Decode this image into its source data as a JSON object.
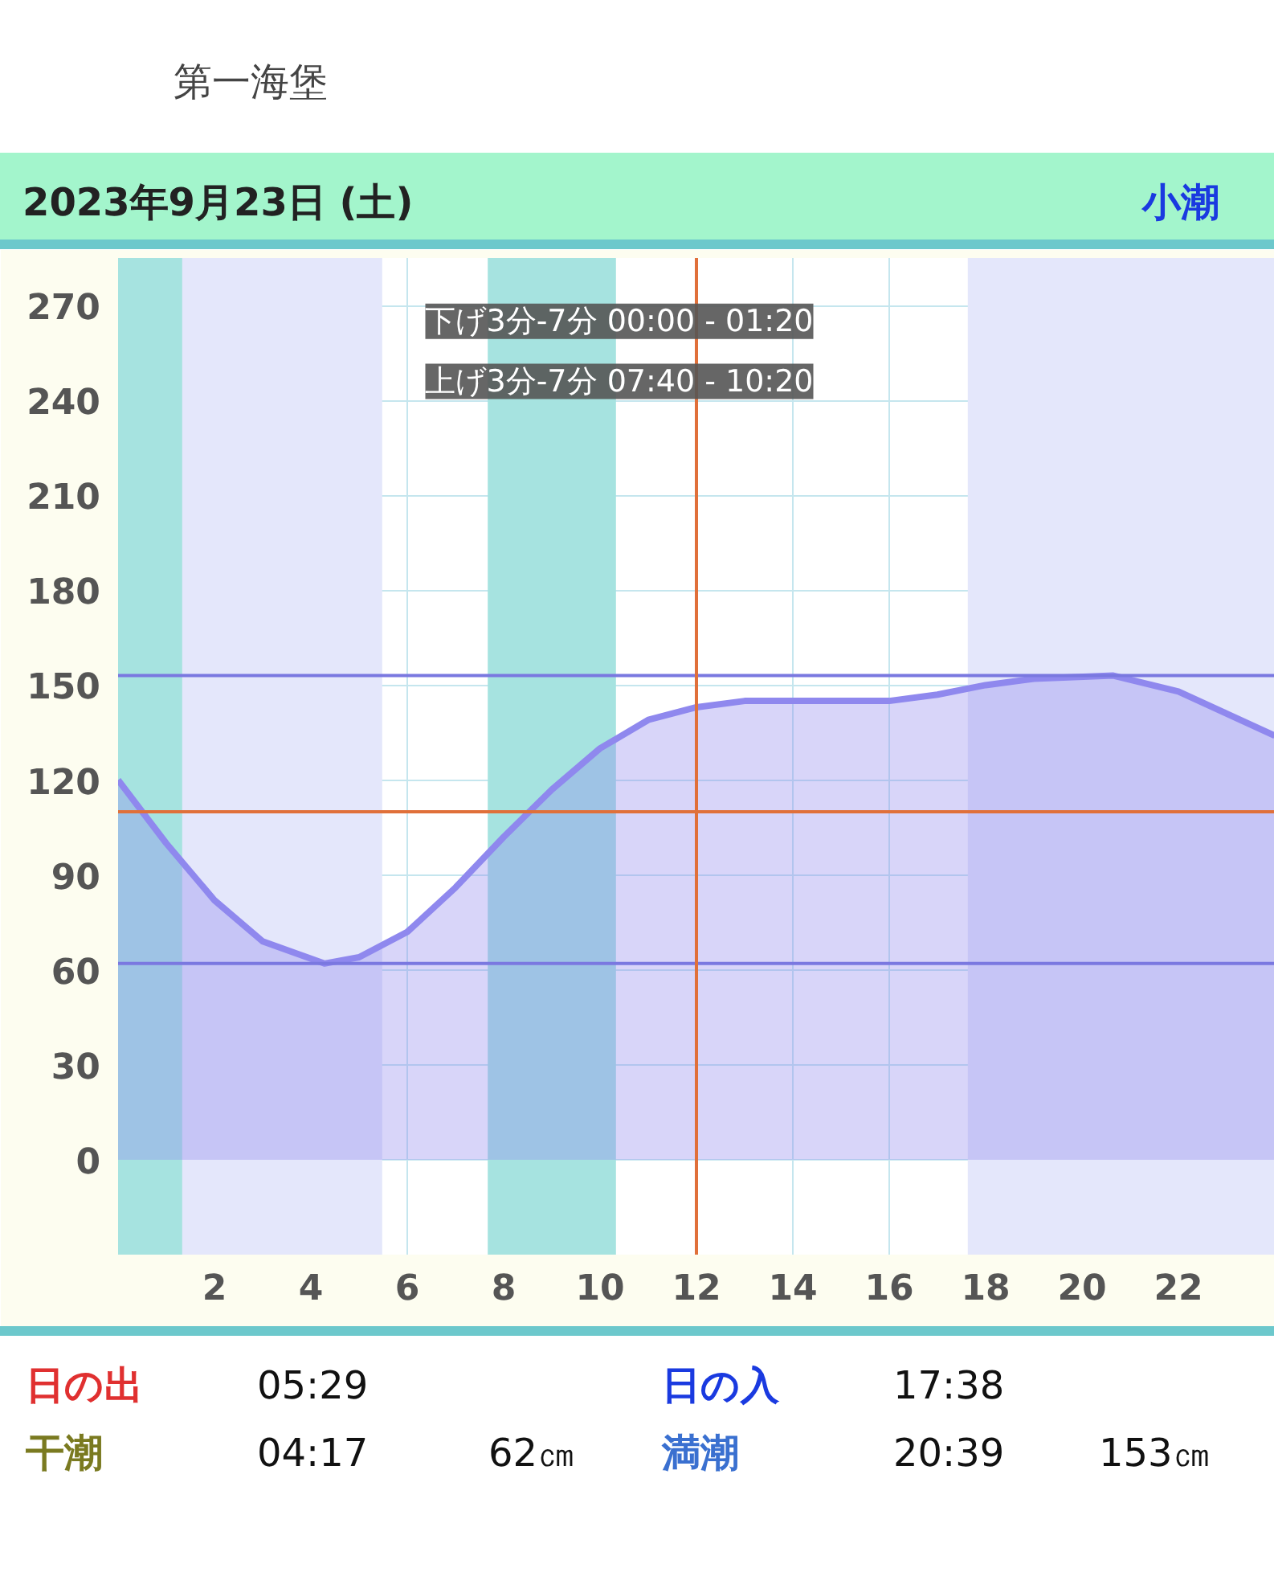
{
  "chart_data": {
    "type": "area",
    "title": "第一海堡",
    "subtitle": "2023年9月23日 (土)",
    "x": [
      0,
      1,
      2,
      3,
      4.28,
      5,
      6,
      7,
      8,
      9,
      10,
      11,
      12,
      13,
      14,
      16,
      17,
      18,
      19,
      20.65,
      22,
      23,
      24
    ],
    "series": [
      {
        "color": "#8f88ee",
        "values": [
          120,
          100,
          82,
          69,
          62,
          64,
          72,
          86,
          102,
          117,
          130,
          139,
          143,
          145,
          145,
          145,
          147,
          150,
          152,
          153,
          148,
          141,
          134
        ]
      }
    ],
    "xlim": [
      0,
      24
    ],
    "ylim": [
      -30,
      285
    ],
    "xticks": [
      2,
      4,
      6,
      8,
      10,
      12,
      14,
      16,
      18,
      20,
      22
    ],
    "yticks": [
      0,
      30,
      60,
      90,
      120,
      150,
      180,
      210,
      240,
      270
    ],
    "grid": true,
    "marker": "none",
    "line_style": "solid",
    "bands": [
      {
        "axis": "x",
        "from": 0,
        "to": 5.48,
        "color": "#e4e7fb"
      },
      {
        "axis": "x",
        "from": 17.63,
        "to": 24,
        "color": "#e4e7fb"
      },
      {
        "axis": "x",
        "from": 0,
        "to": 1.33,
        "color": "#a6e3e0"
      },
      {
        "axis": "x",
        "from": 7.67,
        "to": 10.33,
        "color": "#a6e3e0"
      }
    ],
    "ref_lines": [
      {
        "axis": "y",
        "value": 153,
        "color": "#7a78e0"
      },
      {
        "axis": "y",
        "value": 62,
        "color": "#7a78e0"
      },
      {
        "axis": "y",
        "value": 110,
        "color": "#e0703a"
      },
      {
        "axis": "x",
        "value": 12,
        "color": "#e0703a"
      }
    ],
    "annotations": [
      "小潮",
      "下げ3分-7分 00:00 - 01:20",
      "上げ3分-7分 07:40 - 10:20",
      "日の出",
      "05:29",
      "日の入",
      "17:38",
      "干潮",
      "04:17",
      "62㎝",
      "満潮",
      "20:39",
      "153㎝"
    ]
  }
}
